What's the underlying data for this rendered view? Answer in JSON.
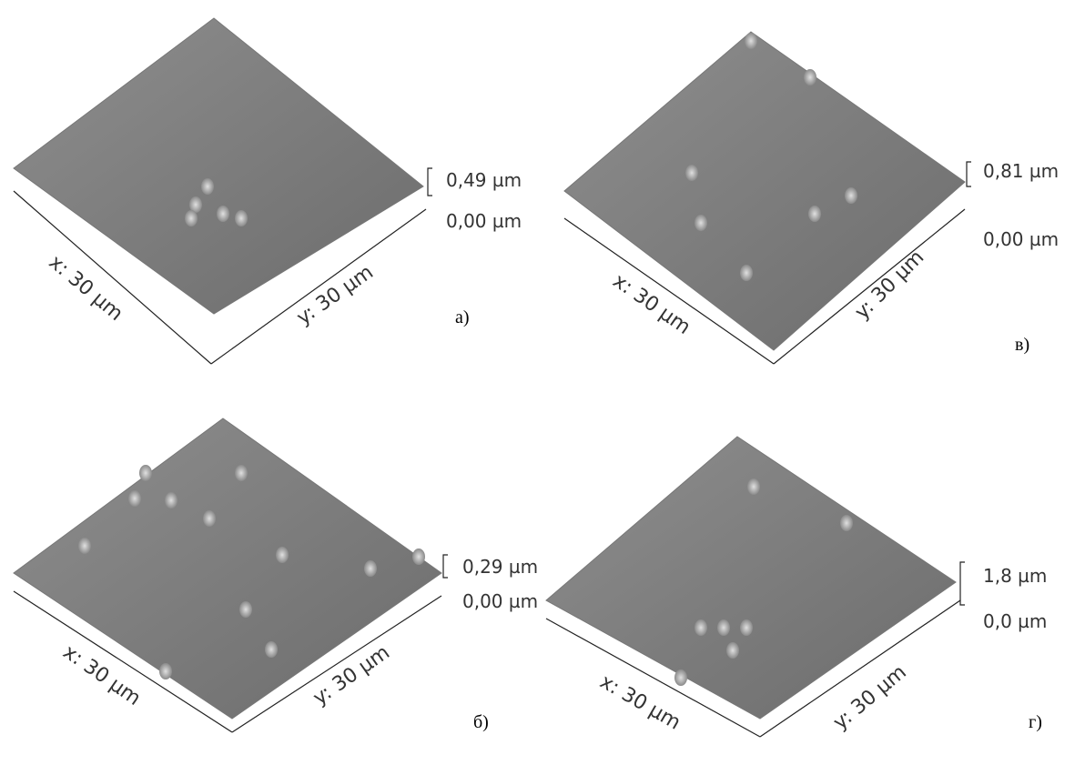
{
  "panels": [
    {
      "label": "а)",
      "x_axis": "x: 30 µm",
      "y_axis": "y: 30 µm",
      "z_max": "0,49 µm",
      "z_min": "0,00 µm"
    },
    {
      "label": "в)",
      "x_axis": "x: 30 µm",
      "y_axis": "y: 30 µm",
      "z_max": "0,81 µm",
      "z_min": "0,00 µm"
    },
    {
      "label": "б)",
      "x_axis": "x: 30 µm",
      "y_axis": "y: 30 µm",
      "z_max": "0,29 µm",
      "z_min": "0,00 µm"
    },
    {
      "label": "г)",
      "x_axis": "x: 30 µm",
      "y_axis": "y: 30 µm",
      "z_max": "1,8 µm",
      "z_min": "0,0 µm"
    }
  ]
}
